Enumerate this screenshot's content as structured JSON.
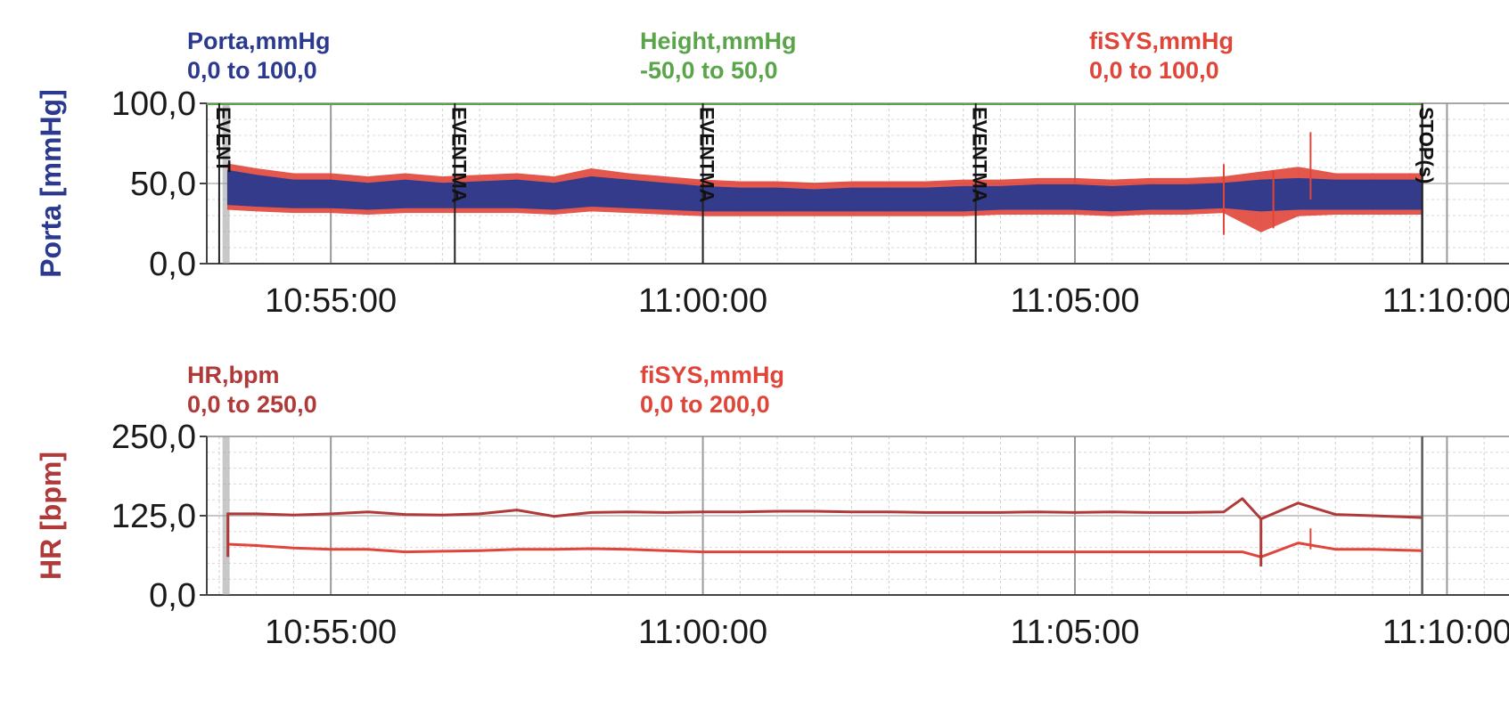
{
  "chart_data": [
    {
      "type": "line",
      "ylabel": "Porta [mmHg]",
      "ylim": [
        0,
        100
      ],
      "yticks": [
        "100,0",
        "50,0",
        "0,0"
      ],
      "xlim": [
        "10:53:20",
        "11:10:50"
      ],
      "xticks": [
        "10:55:00",
        "11:00:00",
        "11:05:00",
        "11:10:00"
      ],
      "grid": true,
      "legend_placement": "top",
      "legend": [
        {
          "name": "Porta,mmHg",
          "range": "0,0 to 100,0",
          "color": "#2b3a8f"
        },
        {
          "name": "Height,mmHg",
          "range": "-50,0 to 50,0",
          "color": "#5aa54a"
        },
        {
          "name": "fiSYS,mmHg",
          "range": "0,0 to 100,0",
          "color": "#e0453a"
        }
      ],
      "events": [
        {
          "time": "10:53:30",
          "label": "EVENT"
        },
        {
          "time": "10:56:40",
          "label": "EVENTMA"
        },
        {
          "time": "11:00:00",
          "label": "EVENTMA"
        },
        {
          "time": "11:03:40",
          "label": "EVENTMA"
        },
        {
          "time": "11:09:40",
          "label": "STOP(s)"
        }
      ],
      "series": [
        {
          "name": "Porta,mmHg",
          "x": [
            "10:53:37",
            "10:54:00",
            "10:54:30",
            "10:55:00",
            "10:55:30",
            "10:56:00",
            "10:56:30",
            "10:57:00",
            "10:57:30",
            "10:58:00",
            "10:58:30",
            "10:59:00",
            "10:59:30",
            "11:00:00",
            "11:00:30",
            "11:01:00",
            "11:01:30",
            "11:02:00",
            "11:02:30",
            "11:03:00",
            "11:03:30",
            "11:04:00",
            "11:04:30",
            "11:05:00",
            "11:05:30",
            "11:06:00",
            "11:06:30",
            "11:07:00",
            "11:07:30",
            "11:08:00",
            "11:08:30",
            "11:09:00",
            "11:09:40"
          ],
          "high": [
            58,
            55,
            52,
            52,
            50,
            52,
            50,
            51,
            52,
            50,
            54,
            52,
            50,
            48,
            47,
            47,
            46,
            47,
            47,
            47,
            48,
            48,
            49,
            49,
            48,
            49,
            49,
            50,
            52,
            53,
            52,
            52,
            52
          ],
          "low": [
            37,
            36,
            35,
            35,
            34,
            35,
            35,
            35,
            35,
            34,
            36,
            35,
            34,
            33,
            33,
            33,
            33,
            33,
            33,
            33,
            33,
            34,
            34,
            34,
            33,
            34,
            34,
            35,
            33,
            34,
            34,
            34,
            34
          ]
        },
        {
          "name": "fiSYS,mmHg",
          "x": [
            "10:53:37",
            "10:54:00",
            "10:54:30",
            "10:55:00",
            "10:55:30",
            "10:56:00",
            "10:56:30",
            "10:57:00",
            "10:57:30",
            "10:58:00",
            "10:58:30",
            "10:59:00",
            "10:59:30",
            "11:00:00",
            "11:00:30",
            "11:01:00",
            "11:01:30",
            "11:02:00",
            "11:02:30",
            "11:03:00",
            "11:03:30",
            "11:04:00",
            "11:04:30",
            "11:05:00",
            "11:05:30",
            "11:06:00",
            "11:06:30",
            "11:07:00",
            "11:07:30",
            "11:08:00",
            "11:08:30",
            "11:09:00",
            "11:09:40"
          ],
          "high": [
            62,
            59,
            56,
            56,
            54,
            56,
            54,
            55,
            56,
            54,
            59,
            56,
            54,
            52,
            51,
            51,
            50,
            51,
            51,
            51,
            52,
            52,
            53,
            53,
            52,
            53,
            53,
            54,
            57,
            60,
            56,
            56,
            56
          ],
          "low": [
            34,
            33,
            32,
            32,
            31,
            32,
            32,
            32,
            32,
            31,
            33,
            32,
            31,
            30,
            30,
            30,
            30,
            30,
            30,
            30,
            30,
            31,
            31,
            31,
            30,
            31,
            31,
            32,
            20,
            30,
            31,
            31,
            31
          ]
        }
      ]
    },
    {
      "type": "line",
      "ylabel": "HR [bpm]",
      "ylim": [
        0,
        250
      ],
      "yticks": [
        "250,0",
        "125,0",
        "0,0"
      ],
      "xlim": [
        "10:53:20",
        "11:10:50"
      ],
      "xticks": [
        "10:55:00",
        "11:00:00",
        "11:05:00",
        "11:10:00"
      ],
      "grid": true,
      "legend_placement": "top",
      "legend": [
        {
          "name": "HR,bpm",
          "range": "0,0 to 250,0",
          "color": "#b03a3a"
        },
        {
          "name": "fiSYS,mmHg",
          "range": "0,0 to 200,0",
          "color": "#e0453a"
        }
      ],
      "series": [
        {
          "name": "HR,bpm",
          "x": [
            "10:53:37",
            "10:54:00",
            "10:54:30",
            "10:55:00",
            "10:55:30",
            "10:56:00",
            "10:56:30",
            "10:57:00",
            "10:57:30",
            "10:58:00",
            "10:58:30",
            "10:59:00",
            "10:59:30",
            "11:00:00",
            "11:00:30",
            "11:01:00",
            "11:01:30",
            "11:02:00",
            "11:02:30",
            "11:03:00",
            "11:03:30",
            "11:04:00",
            "11:04:30",
            "11:05:00",
            "11:05:30",
            "11:06:00",
            "11:06:30",
            "11:07:00",
            "11:07:15",
            "11:07:30",
            "11:08:00",
            "11:08:30",
            "11:09:00",
            "11:09:40"
          ],
          "values": [
            128,
            128,
            126,
            128,
            131,
            127,
            126,
            128,
            134,
            124,
            130,
            131,
            130,
            131,
            131,
            132,
            132,
            131,
            131,
            130,
            130,
            130,
            131,
            130,
            131,
            130,
            130,
            131,
            152,
            120,
            145,
            127,
            125,
            122
          ]
        },
        {
          "name": "fiSYS,mmHg",
          "x": [
            "10:53:37",
            "10:54:00",
            "10:54:30",
            "10:55:00",
            "10:55:30",
            "10:56:00",
            "10:56:30",
            "10:57:00",
            "10:57:30",
            "10:58:00",
            "10:58:30",
            "10:59:00",
            "10:59:30",
            "11:00:00",
            "11:00:30",
            "11:01:00",
            "11:01:30",
            "11:02:00",
            "11:02:30",
            "11:03:00",
            "11:03:30",
            "11:04:00",
            "11:04:30",
            "11:05:00",
            "11:05:30",
            "11:06:00",
            "11:06:30",
            "11:07:00",
            "11:07:15",
            "11:07:30",
            "11:08:00",
            "11:08:30",
            "11:09:00",
            "11:09:40"
          ],
          "values": [
            80,
            78,
            74,
            72,
            72,
            68,
            69,
            70,
            72,
            72,
            73,
            72,
            70,
            68,
            68,
            68,
            68,
            68,
            68,
            68,
            68,
            68,
            68,
            68,
            68,
            68,
            68,
            68,
            68,
            60,
            82,
            72,
            72,
            70
          ]
        }
      ]
    }
  ]
}
